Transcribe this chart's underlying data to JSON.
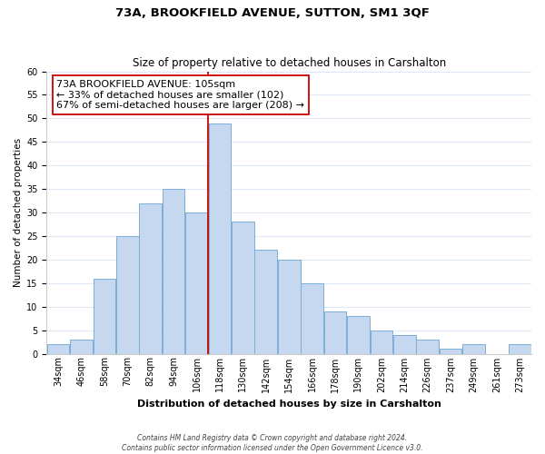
{
  "title": "73A, BROOKFIELD AVENUE, SUTTON, SM1 3QF",
  "subtitle": "Size of property relative to detached houses in Carshalton",
  "xlabel": "Distribution of detached houses by size in Carshalton",
  "ylabel": "Number of detached properties",
  "bar_labels": [
    "34sqm",
    "46sqm",
    "58sqm",
    "70sqm",
    "82sqm",
    "94sqm",
    "106sqm",
    "118sqm",
    "130sqm",
    "142sqm",
    "154sqm",
    "166sqm",
    "178sqm",
    "190sqm",
    "202sqm",
    "214sqm",
    "226sqm",
    "237sqm",
    "249sqm",
    "261sqm",
    "273sqm"
  ],
  "bar_values": [
    2,
    3,
    16,
    25,
    32,
    35,
    30,
    49,
    28,
    22,
    20,
    15,
    9,
    8,
    5,
    4,
    3,
    1,
    2,
    0,
    2
  ],
  "bar_color": "#c5d8f0",
  "bar_edge_color": "#7aaed6",
  "vline_x_index": 6,
  "vline_color": "#cc0000",
  "annotation_line1": "73A BROOKFIELD AVENUE: 105sqm",
  "annotation_line2": "← 33% of detached houses are smaller (102)",
  "annotation_line3": "67% of semi-detached houses are larger (208) →",
  "annotation_box_color": "#ffffff",
  "annotation_box_edge": "#cc0000",
  "ylim": [
    0,
    60
  ],
  "yticks": [
    0,
    5,
    10,
    15,
    20,
    25,
    30,
    35,
    40,
    45,
    50,
    55,
    60
  ],
  "footer_line1": "Contains HM Land Registry data © Crown copyright and database right 2024.",
  "footer_line2": "Contains public sector information licensed under the Open Government Licence v3.0.",
  "background_color": "#ffffff",
  "grid_color": "#dce8f5",
  "title_fontsize": 9.5,
  "subtitle_fontsize": 8.5,
  "xlabel_fontsize": 8,
  "ylabel_fontsize": 7.5,
  "tick_fontsize": 7,
  "footer_fontsize": 5.5,
  "annotation_fontsize": 8
}
